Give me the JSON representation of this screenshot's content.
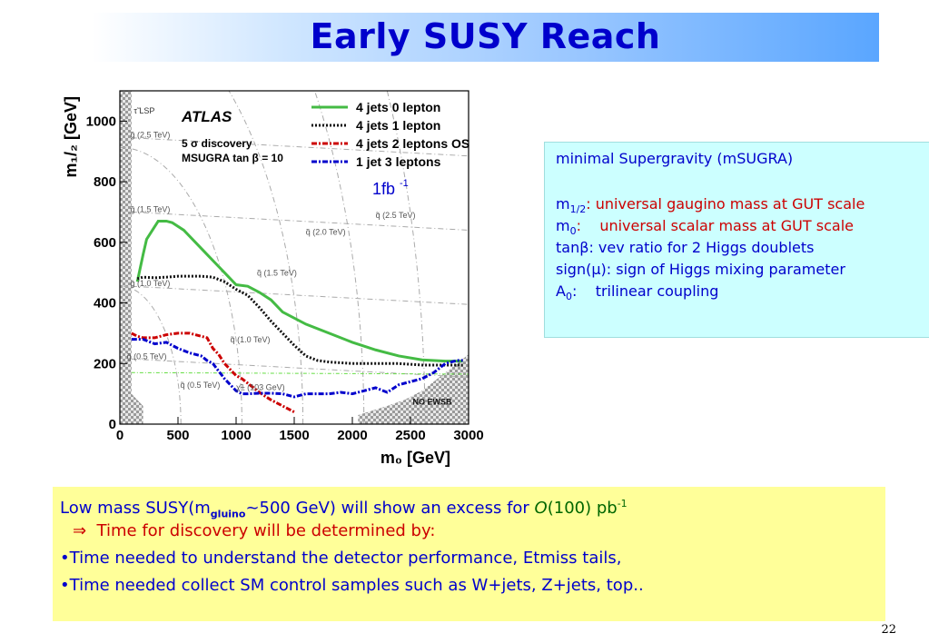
{
  "title": "Early SUSY Reach",
  "page_number": "22",
  "chart_data": {
    "type": "line",
    "xlabel": "m₀ [GeV]",
    "ylabel": "m₁/₂ [GeV]",
    "xlim": [
      0,
      3000
    ],
    "ylim": [
      0,
      1100
    ],
    "x_ticks": [
      "0",
      "500",
      "1000",
      "1500",
      "2000",
      "2500",
      "3000"
    ],
    "y_ticks": [
      "0",
      "200",
      "400",
      "600",
      "800",
      "1000"
    ],
    "annotations": {
      "atlas": "ATLAS",
      "discovery": "5 σ discovery",
      "msugra": "MSUGRA tan β = 10",
      "lsp": "τ̃ LSP",
      "no_ewsb": "NO EWSB",
      "lumi": "1fb",
      "lumi_exp": "-1",
      "squark_labels": [
        {
          "text": "q̃ (2.5 TeV)",
          "x": 2200,
          "y": 680
        },
        {
          "text": "q̃ (2.0 TeV)",
          "x": 1600,
          "y": 625
        },
        {
          "text": "q̃ (1.5 TeV)",
          "x": 1180,
          "y": 490
        },
        {
          "text": "q̃ (1.0 TeV)",
          "x": 950,
          "y": 270
        },
        {
          "text": "q̃ (0.5 TeV)",
          "x": 520,
          "y": 120
        }
      ],
      "gluino_labels": [
        {
          "text": "g̃ (2.5 TeV)",
          "x": 90,
          "y": 945
        },
        {
          "text": "g̃ (1.5 TeV)",
          "x": 90,
          "y": 700
        },
        {
          "text": "g̃ (1.0 TeV)",
          "x": 90,
          "y": 455
        },
        {
          "text": "g̃ (0.5 TeV)",
          "x": 60,
          "y": 215
        },
        {
          "text": "χ̃± (103 GeV)",
          "x": 1000,
          "y": 112
        }
      ]
    },
    "series": [
      {
        "name": "4 jets 0 lepton",
        "color": "#44bb44",
        "style": "solid",
        "x": [
          150,
          200,
          230,
          280,
          330,
          400,
          450,
          550,
          650,
          750,
          850,
          900,
          1000,
          1100,
          1200,
          1300,
          1400,
          1600,
          1800,
          2000,
          2200,
          2400,
          2600,
          2800,
          2950
        ],
        "y": [
          470,
          560,
          610,
          640,
          670,
          670,
          665,
          640,
          600,
          560,
          520,
          500,
          460,
          455,
          435,
          410,
          370,
          330,
          300,
          270,
          245,
          225,
          212,
          208,
          208
        ]
      },
      {
        "name": "4 jets 1 lepton",
        "color": "#111111",
        "style": "dotted",
        "x": [
          150,
          200,
          300,
          400,
          500,
          600,
          700,
          800,
          900,
          1000,
          1100,
          1200,
          1300,
          1400,
          1500,
          1600,
          1700,
          1800,
          2000,
          2200,
          2400,
          2600,
          2800,
          2950
        ],
        "y": [
          480,
          485,
          483,
          485,
          488,
          488,
          488,
          485,
          470,
          445,
          425,
          385,
          340,
          300,
          260,
          225,
          210,
          205,
          200,
          200,
          200,
          195,
          195,
          195
        ]
      },
      {
        "name": "4 jets 2 leptons OS",
        "color": "#cc0000",
        "style": "dashdot",
        "x": [
          100,
          150,
          200,
          300,
          400,
          500,
          600,
          700,
          750,
          800,
          850,
          900,
          950,
          1000,
          1050,
          1100,
          1150,
          1200,
          1250,
          1300,
          1350,
          1400,
          1450,
          1500
        ],
        "y": [
          300,
          290,
          285,
          285,
          295,
          300,
          300,
          290,
          285,
          250,
          230,
          200,
          180,
          160,
          150,
          135,
          120,
          105,
          92,
          80,
          70,
          60,
          50,
          40
        ]
      },
      {
        "name": "1 jet 3 leptons",
        "color": "#0000cc",
        "style": "dashdot",
        "x": [
          100,
          200,
          300,
          400,
          500,
          600,
          700,
          750,
          800,
          850,
          900,
          950,
          1000,
          1050,
          1100,
          1200,
          1300,
          1400,
          1500,
          1600,
          1700,
          1800,
          1900,
          2000,
          2100,
          2200,
          2300,
          2400,
          2500,
          2600,
          2700,
          2800,
          2900,
          2950
        ],
        "y": [
          280,
          280,
          265,
          270,
          250,
          235,
          225,
          210,
          200,
          175,
          150,
          130,
          110,
          100,
          100,
          102,
          102,
          100,
          90,
          100,
          100,
          100,
          105,
          100,
          110,
          120,
          105,
          130,
          140,
          150,
          170,
          200,
          210,
          210
        ]
      }
    ]
  },
  "info": {
    "heading": "minimal Supergravity (mSUGRA)",
    "lines": [
      {
        "sym": "m",
        "sub": "1/2",
        "text": ": universal gaugino mass at GUT scale"
      },
      {
        "sym": "m",
        "sub": "0",
        "text": ":    universal scalar mass at GUT scale"
      },
      {
        "sym": "tanβ",
        "sub": "",
        "text": ": vev ratio for 2 Higgs doublets"
      },
      {
        "sym": "sign(μ)",
        "sub": "",
        "text": ": sign of Higgs mixing parameter"
      },
      {
        "sym": "A",
        "sub": "0",
        "text": ":    trilinear coupling"
      }
    ]
  },
  "bottom": {
    "line1_a": "Low mass SUSY(m",
    "line1_sub": "gluino",
    "line1_b": "~500 GeV) will show an excess for ",
    "line1_c": "O",
    "line1_d": "(100) pb",
    "line1_sup": "-1",
    "line2_arrow": "⇒",
    "line2": "Time for discovery will be determined by:",
    "bullet": "•",
    "line3": "Time needed to understand the detector performance, Etmiss tails,",
    "line4": "Time needed collect SM control samples such as W+jets, Z+jets, top.."
  }
}
